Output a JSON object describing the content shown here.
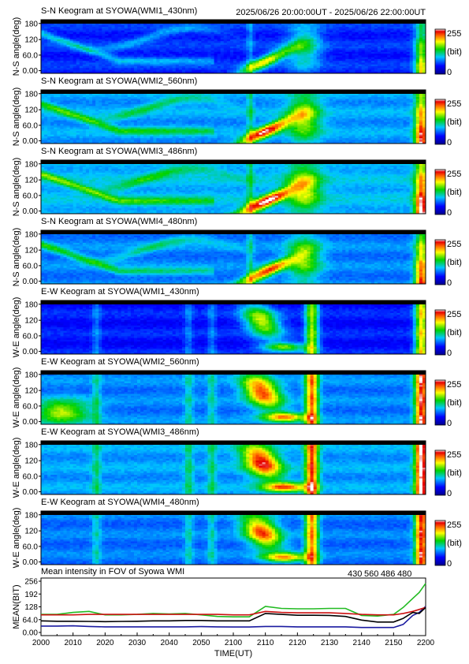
{
  "header": {
    "title": "S-N Keogram at SYOWA(WMI1_430nm)",
    "time_range": "2025/06/26 20:00:00UT - 2025/06/26 22:00:00UT"
  },
  "panels": [
    {
      "title": "S-N Keogram at SYOWA(WMI1_430nm)",
      "ylabel": "N-S angle(deg)",
      "level": 0.35,
      "kind": "sn"
    },
    {
      "title": "S-N Keogram at SYOWA(WMI2_560nm)",
      "ylabel": "N-S angle(deg)",
      "level": 0.55,
      "kind": "sn"
    },
    {
      "title": "S-N Keogram at SYOWA(WMI3_486nm)",
      "ylabel": "N-S angle(deg)",
      "level": 0.6,
      "kind": "sn"
    },
    {
      "title": "S-N Keogram at SYOWA(WMI4_480nm)",
      "ylabel": "N-S angle(deg)",
      "level": 0.5,
      "kind": "sn"
    },
    {
      "title": "E-W Keogram at SYOWA(WMI1_430nm)",
      "ylabel": "W-E angle(deg)",
      "level": 0.32,
      "kind": "ew"
    },
    {
      "title": "E-W Keogram at SYOWA(WMI2_560nm)",
      "ylabel": "W-E angle(deg)",
      "level": 0.5,
      "kind": "ew"
    },
    {
      "title": "E-W Keogram at SYOWA(WMI3_486nm)",
      "ylabel": "W-E angle(deg)",
      "level": 0.55,
      "kind": "ew"
    },
    {
      "title": "E-W Keogram at SYOWA(WMI4_480nm)",
      "ylabel": "W-E angle(deg)",
      "level": 0.48,
      "kind": "ew"
    }
  ],
  "keogram_yticks": [
    "180",
    "120",
    "60.0",
    "0.00"
  ],
  "colorbar": {
    "max": "255",
    "unit": "(bit)",
    "min": "0"
  },
  "mean_panel": {
    "title": "Mean intensity in FOV of Syowa WMI",
    "ylabel": "MEAN(BIT)",
    "yticks": [
      "256",
      "192",
      "128",
      "64.0",
      "0.00"
    ],
    "legend": [
      {
        "label": "430",
        "color": "#1a1aa0"
      },
      {
        "label": "560",
        "color": "#22bb22"
      },
      {
        "label": "486",
        "color": "#cc1111"
      },
      {
        "label": "480",
        "color": "#000000"
      }
    ]
  },
  "xaxis": {
    "ticks": [
      "2000",
      "2010",
      "2020",
      "2030",
      "2040",
      "2050",
      "2100",
      "2110",
      "2120",
      "2130",
      "2140",
      "2150",
      "2200"
    ],
    "label": "TIME(UT)"
  },
  "chart_data": {
    "type": "line",
    "title": "Mean intensity in FOV of Syowa WMI",
    "xlabel": "TIME(UT)",
    "ylabel": "MEAN(BIT)",
    "x_minutes": [
      0,
      5,
      10,
      15,
      20,
      25,
      30,
      35,
      40,
      45,
      50,
      55,
      60,
      65,
      70,
      75,
      80,
      85,
      90,
      95,
      100,
      105,
      110,
      113,
      116,
      118,
      120
    ],
    "ylim": [
      0,
      256
    ],
    "series": [
      {
        "name": "430",
        "color": "#1a1aa0",
        "values": [
          32,
          32,
          33,
          30,
          28,
          28,
          28,
          28,
          28,
          28,
          29,
          28,
          27,
          27,
          30,
          30,
          28,
          28,
          28,
          28,
          25,
          25,
          25,
          40,
          85,
          100,
          130
        ]
      },
      {
        "name": "560",
        "color": "#22bb22",
        "values": [
          90,
          90,
          100,
          105,
          88,
          88,
          90,
          95,
          92,
          95,
          88,
          80,
          78,
          78,
          130,
          120,
          118,
          118,
          120,
          120,
          85,
          82,
          90,
          125,
          170,
          200,
          245
        ]
      },
      {
        "name": "486",
        "color": "#cc1111",
        "values": [
          88,
          88,
          88,
          90,
          90,
          90,
          90,
          90,
          90,
          90,
          90,
          90,
          88,
          88,
          105,
          100,
          98,
          98,
          98,
          95,
          90,
          88,
          88,
          95,
          105,
          115,
          125
        ]
      },
      {
        "name": "480",
        "color": "#000000",
        "values": [
          58,
          56,
          56,
          55,
          54,
          55,
          56,
          58,
          58,
          60,
          60,
          58,
          58,
          58,
          95,
          90,
          86,
          86,
          85,
          80,
          62,
          52,
          52,
          70,
          100,
          95,
          125
        ]
      }
    ]
  }
}
